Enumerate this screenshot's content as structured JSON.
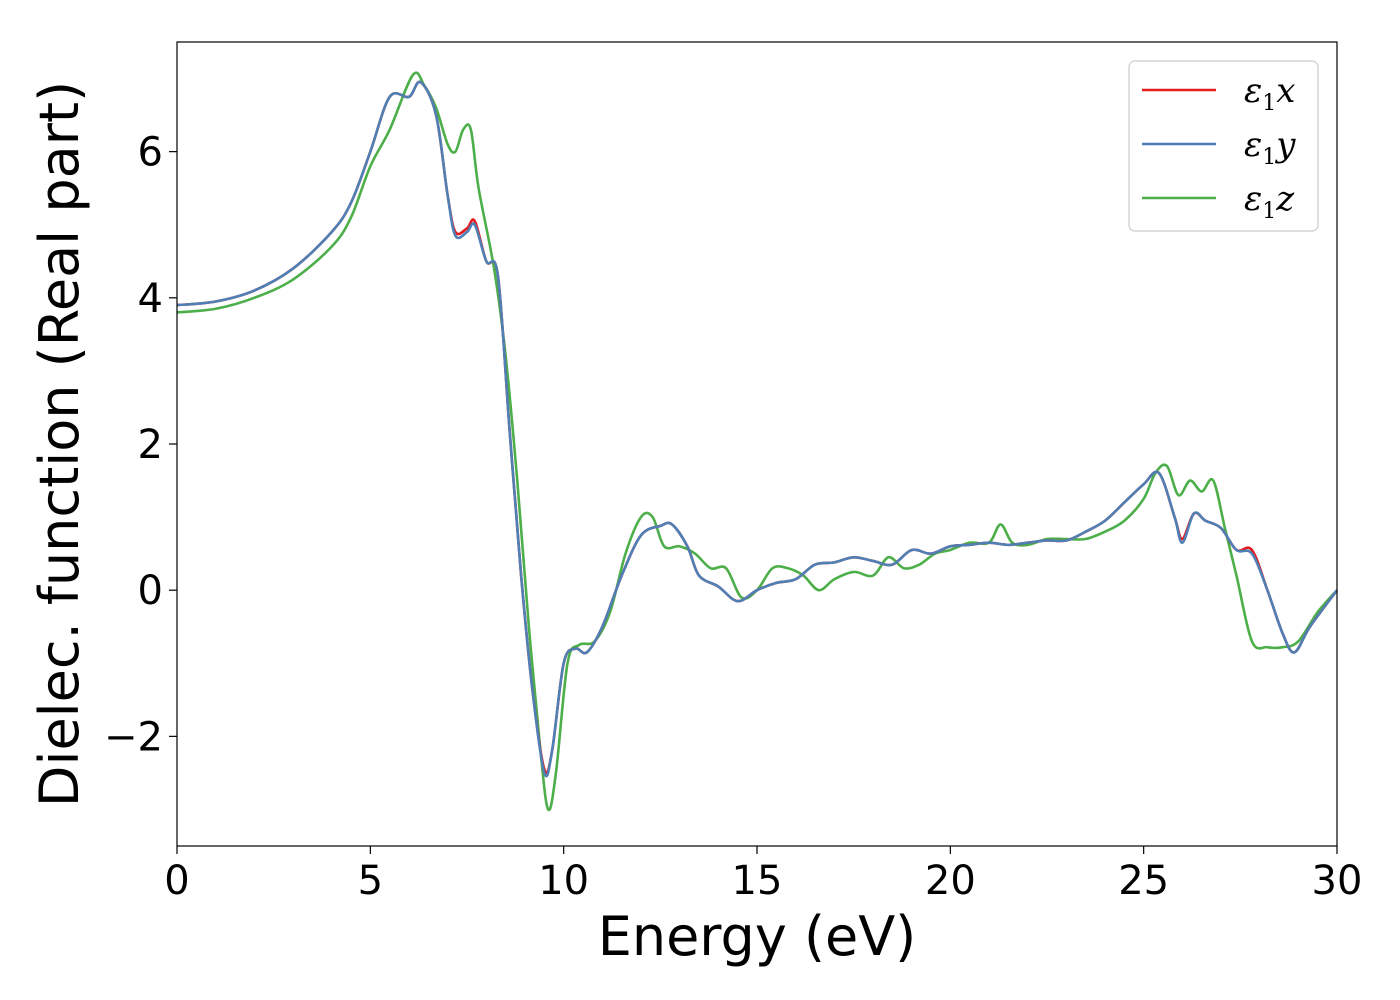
{
  "chart_data": {
    "type": "line",
    "xlabel": "Energy (eV)",
    "ylabel": "Dielec. function (Real part)",
    "xlim": [
      0,
      30
    ],
    "ylim": [
      -3.5,
      7.5
    ],
    "xticks": [
      0,
      5,
      10,
      15,
      20,
      25,
      30
    ],
    "xtick_labels": [
      "0",
      "5",
      "10",
      "15",
      "20",
      "25",
      "30"
    ],
    "yticks": [
      -2,
      0,
      2,
      4,
      6
    ],
    "ytick_labels": [
      "−2",
      "0",
      "2",
      "4",
      "6"
    ],
    "grid": false,
    "legend_position": "top-right",
    "series": [
      {
        "name": "ε1x",
        "name_symbol": "ε",
        "name_sub": "1",
        "name_suffix": "x",
        "color": "#e41a1c",
        "x": [
          0,
          1,
          2,
          3,
          4,
          4.5,
          5,
          5.5,
          6,
          6.3,
          6.7,
          7.0,
          7.2,
          7.5,
          7.7,
          8.0,
          8.3,
          8.6,
          8.9,
          9.2,
          9.5,
          9.7,
          10.0,
          10.3,
          10.6,
          11.0,
          11.5,
          12.0,
          12.5,
          12.8,
          13.2,
          13.5,
          14.0,
          14.5,
          15.0,
          15.5,
          16.0,
          16.5,
          17.0,
          17.5,
          18.0,
          18.5,
          19.0,
          19.5,
          20.0,
          20.5,
          21.0,
          21.5,
          22.0,
          22.5,
          23.0,
          23.5,
          24.0,
          24.5,
          25.0,
          25.4,
          25.8,
          26.0,
          26.3,
          26.6,
          27.0,
          27.4,
          27.8,
          28.2,
          28.6,
          28.9,
          29.3,
          30.0
        ],
        "y": [
          3.9,
          3.95,
          4.1,
          4.4,
          4.9,
          5.3,
          6.0,
          6.75,
          6.75,
          6.95,
          6.5,
          5.4,
          4.9,
          4.95,
          5.05,
          4.5,
          4.3,
          2.2,
          0.2,
          -1.4,
          -2.45,
          -2.2,
          -1.0,
          -0.8,
          -0.85,
          -0.5,
          0.2,
          0.75,
          0.88,
          0.9,
          0.6,
          0.2,
          0.05,
          -0.15,
          0.0,
          0.1,
          0.15,
          0.35,
          0.38,
          0.45,
          0.4,
          0.35,
          0.55,
          0.5,
          0.6,
          0.62,
          0.65,
          0.62,
          0.65,
          0.68,
          0.68,
          0.8,
          0.95,
          1.2,
          1.45,
          1.6,
          1.0,
          0.7,
          1.05,
          0.95,
          0.85,
          0.55,
          0.55,
          0.0,
          -0.6,
          -0.85,
          -0.5,
          0.0
        ]
      },
      {
        "name": "ε1y",
        "name_symbol": "ε",
        "name_sub": "1",
        "name_suffix": "y",
        "color": "#4e7fb5",
        "x": [
          0,
          1,
          2,
          3,
          4,
          4.5,
          5,
          5.5,
          6,
          6.3,
          6.7,
          7.0,
          7.2,
          7.5,
          7.7,
          8.0,
          8.3,
          8.6,
          8.9,
          9.2,
          9.5,
          9.7,
          10.0,
          10.3,
          10.6,
          11.0,
          11.5,
          12.0,
          12.5,
          12.8,
          13.2,
          13.5,
          14.0,
          14.5,
          15.0,
          15.5,
          16.0,
          16.5,
          17.0,
          17.5,
          18.0,
          18.5,
          19.0,
          19.5,
          20.0,
          20.5,
          21.0,
          21.5,
          22.0,
          22.5,
          23.0,
          23.5,
          24.0,
          24.5,
          25.0,
          25.4,
          25.8,
          26.0,
          26.3,
          26.6,
          27.0,
          27.4,
          27.8,
          28.2,
          28.6,
          28.9,
          29.3,
          30.0
        ],
        "y": [
          3.9,
          3.95,
          4.1,
          4.4,
          4.9,
          5.3,
          6.0,
          6.75,
          6.75,
          6.95,
          6.5,
          5.4,
          4.85,
          4.9,
          5.0,
          4.5,
          4.3,
          2.2,
          0.2,
          -1.4,
          -2.5,
          -2.2,
          -1.0,
          -0.8,
          -0.85,
          -0.5,
          0.2,
          0.75,
          0.88,
          0.9,
          0.6,
          0.2,
          0.05,
          -0.15,
          0.0,
          0.1,
          0.15,
          0.35,
          0.38,
          0.45,
          0.4,
          0.35,
          0.55,
          0.5,
          0.6,
          0.62,
          0.65,
          0.62,
          0.65,
          0.68,
          0.68,
          0.8,
          0.95,
          1.2,
          1.45,
          1.6,
          1.0,
          0.65,
          1.05,
          0.95,
          0.85,
          0.55,
          0.5,
          0.0,
          -0.6,
          -0.85,
          -0.5,
          0.0
        ]
      },
      {
        "name": "ε1z",
        "name_symbol": "ε",
        "name_sub": "1",
        "name_suffix": "z",
        "color": "#4daf4a",
        "x": [
          0,
          1,
          2,
          3,
          4,
          4.5,
          5,
          5.5,
          6.1,
          6.4,
          6.7,
          7.0,
          7.2,
          7.4,
          7.6,
          7.8,
          8.2,
          8.5,
          8.8,
          9.1,
          9.4,
          9.6,
          9.8,
          10.1,
          10.4,
          10.8,
          11.2,
          11.6,
          12.0,
          12.3,
          12.6,
          13.0,
          13.4,
          13.8,
          14.2,
          14.6,
          15.0,
          15.4,
          15.8,
          16.2,
          16.6,
          17.0,
          17.5,
          18.0,
          18.4,
          18.8,
          19.2,
          19.6,
          20.0,
          20.5,
          21.0,
          21.3,
          21.6,
          22.0,
          22.5,
          23.0,
          23.5,
          24.0,
          24.5,
          25.0,
          25.3,
          25.6,
          25.9,
          26.2,
          26.5,
          26.8,
          27.1,
          27.4,
          27.8,
          28.2,
          28.6,
          29.0,
          29.5,
          30.0
        ],
        "y": [
          3.8,
          3.85,
          4.0,
          4.25,
          4.7,
          5.1,
          5.8,
          6.3,
          7.05,
          6.9,
          6.6,
          6.1,
          6.0,
          6.3,
          6.3,
          5.5,
          4.4,
          3.2,
          1.5,
          -0.5,
          -2.2,
          -3.0,
          -2.5,
          -1.0,
          -0.75,
          -0.7,
          -0.3,
          0.5,
          1.0,
          1.0,
          0.6,
          0.6,
          0.5,
          0.3,
          0.3,
          -0.1,
          0.0,
          0.3,
          0.3,
          0.2,
          0.0,
          0.15,
          0.25,
          0.2,
          0.45,
          0.3,
          0.35,
          0.5,
          0.55,
          0.65,
          0.65,
          0.9,
          0.65,
          0.62,
          0.7,
          0.7,
          0.7,
          0.8,
          0.95,
          1.25,
          1.6,
          1.7,
          1.3,
          1.5,
          1.35,
          1.5,
          0.85,
          0.2,
          -0.7,
          -0.78,
          -0.78,
          -0.7,
          -0.3,
          0.0
        ]
      }
    ]
  }
}
